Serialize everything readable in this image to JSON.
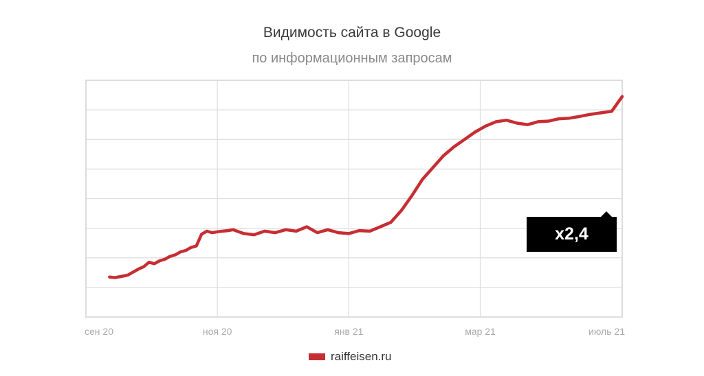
{
  "title": "Видимость сайта в Google",
  "subtitle": "по информационным запросам",
  "badge": "x2,4",
  "colors": {
    "series": "#c62e33",
    "grid": "#dddddd",
    "axis_text": "#aaaaaa",
    "badge_bg": "#000000"
  },
  "chart_data": {
    "type": "line",
    "title": "Видимость сайта в Google",
    "subtitle": "по информационным запросам",
    "xlabel": "",
    "ylabel": "",
    "x_tick_labels": [
      "сен 20",
      "ноя 20",
      "янв 21",
      "мар 21",
      "июль 21"
    ],
    "y_tick_labels": [],
    "xlim": [
      0,
      10.2
    ],
    "ylim": [
      0,
      8
    ],
    "grid": true,
    "legend": "bottom",
    "annotations": [
      "x2,4"
    ],
    "series": [
      {
        "name": "raiffeisen.ru",
        "color": "#c62e33",
        "x": [
          0.45,
          0.55,
          0.7,
          0.8,
          0.9,
          1.0,
          1.1,
          1.2,
          1.3,
          1.4,
          1.5,
          1.6,
          1.7,
          1.8,
          1.9,
          2.0,
          2.1,
          2.2,
          2.3,
          2.4,
          2.5,
          2.6,
          2.7,
          2.8,
          3.0,
          3.2,
          3.4,
          3.6,
          3.8,
          4.0,
          4.2,
          4.4,
          4.6,
          4.8,
          5.0,
          5.2,
          5.4,
          5.6,
          5.8,
          6.0,
          6.2,
          6.4,
          6.6,
          6.8,
          7.0,
          7.2,
          7.4,
          7.6,
          7.8,
          8.0,
          8.2,
          8.4,
          8.6,
          8.8,
          9.0,
          9.2,
          9.4,
          9.6,
          9.8,
          10.0,
          10.2
        ],
        "y": [
          1.35,
          1.33,
          1.38,
          1.42,
          1.52,
          1.62,
          1.7,
          1.85,
          1.8,
          1.9,
          1.95,
          2.05,
          2.1,
          2.2,
          2.25,
          2.35,
          2.4,
          2.8,
          2.9,
          2.85,
          2.88,
          2.9,
          2.92,
          2.95,
          2.82,
          2.78,
          2.9,
          2.85,
          2.95,
          2.9,
          3.05,
          2.85,
          2.95,
          2.85,
          2.82,
          2.92,
          2.9,
          3.05,
          3.2,
          3.6,
          4.1,
          4.65,
          5.05,
          5.45,
          5.75,
          6.0,
          6.25,
          6.45,
          6.6,
          6.65,
          6.55,
          6.5,
          6.6,
          6.62,
          6.7,
          6.72,
          6.78,
          6.85,
          6.9,
          6.95,
          7.45
        ]
      }
    ]
  }
}
